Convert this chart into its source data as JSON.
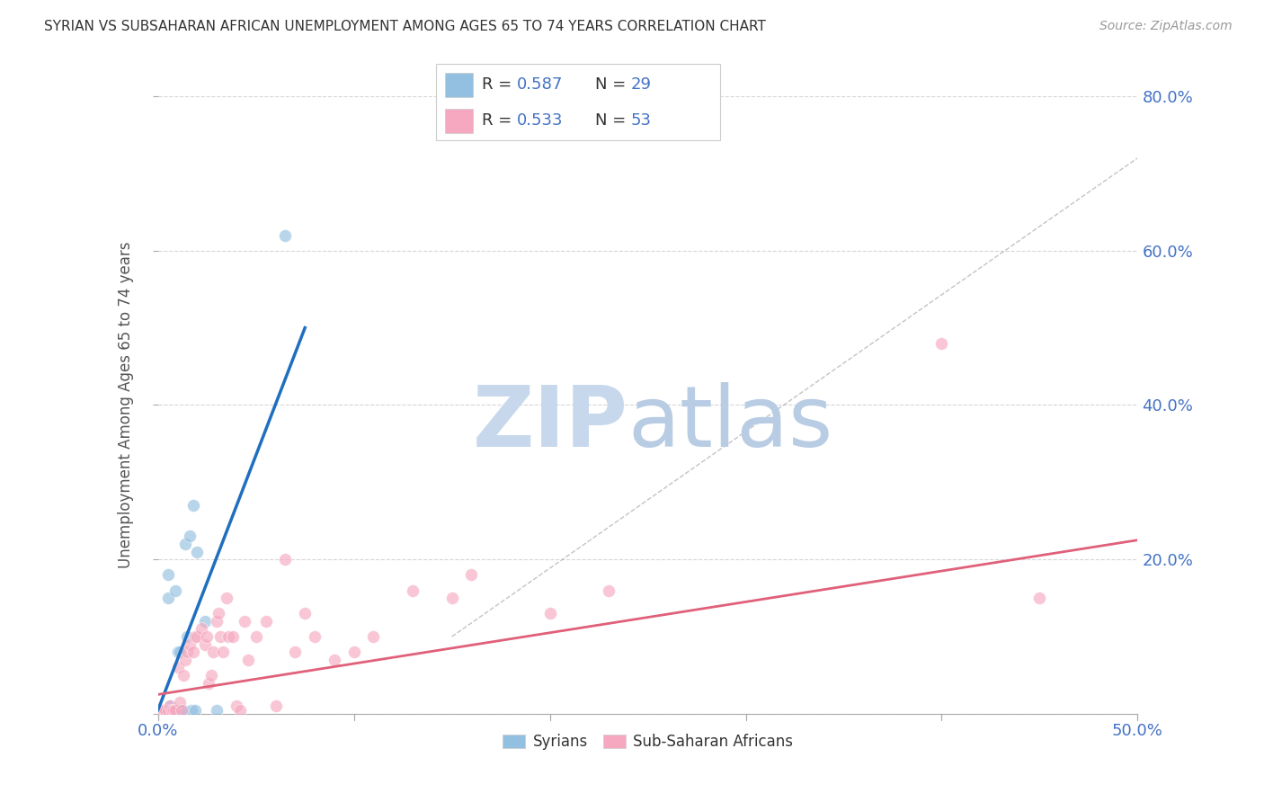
{
  "title": "SYRIAN VS SUBSAHARAN AFRICAN UNEMPLOYMENT AMONG AGES 65 TO 74 YEARS CORRELATION CHART",
  "source": "Source: ZipAtlas.com",
  "ylabel": "Unemployment Among Ages 65 to 74 years",
  "xlim": [
    0.0,
    0.5
  ],
  "ylim": [
    0.0,
    0.8
  ],
  "xticks": [
    0.0,
    0.1,
    0.2,
    0.3,
    0.4,
    0.5
  ],
  "yticks": [
    0.0,
    0.2,
    0.4,
    0.6,
    0.8
  ],
  "ytick_labels": [
    "",
    "20.0%",
    "40.0%",
    "60.0%",
    "80.0%"
  ],
  "xtick_labels_shown": [
    "0.0%",
    "",
    "",
    "",
    "",
    "50.0%"
  ],
  "blue_R": "0.587",
  "blue_N": "29",
  "pink_R": "0.533",
  "pink_N": "53",
  "blue_dot_color": "#93bfe0",
  "pink_dot_color": "#f5a8bf",
  "blue_line_color": "#1f6fbf",
  "pink_line_color": "#e0607a",
  "axis_label_color": "#4472c4",
  "grid_color": "#cccccc",
  "watermark_zip_color": "#c8d8ec",
  "watermark_atlas_color": "#b8cce4",
  "background_color": "#ffffff",
  "legend_border_color": "#cccccc",
  "R_label_color": "#333333",
  "R_value_color": "#4472c4",
  "N_label_color": "#333333",
  "N_value_color": "#4472c4",
  "syrians_x": [
    0.001,
    0.002,
    0.003,
    0.003,
    0.004,
    0.004,
    0.005,
    0.005,
    0.005,
    0.006,
    0.007,
    0.007,
    0.008,
    0.009,
    0.01,
    0.01,
    0.011,
    0.012,
    0.013,
    0.014,
    0.015,
    0.016,
    0.017,
    0.018,
    0.019,
    0.02,
    0.024,
    0.03,
    0.065
  ],
  "syrians_y": [
    0.005,
    0.005,
    0.005,
    0.005,
    0.005,
    0.005,
    0.18,
    0.15,
    0.005,
    0.01,
    0.005,
    0.005,
    0.005,
    0.16,
    0.08,
    0.005,
    0.08,
    0.005,
    0.005,
    0.22,
    0.1,
    0.23,
    0.005,
    0.27,
    0.005,
    0.21,
    0.12,
    0.005,
    0.62
  ],
  "subsaharan_x": [
    0.001,
    0.002,
    0.003,
    0.004,
    0.005,
    0.006,
    0.007,
    0.008,
    0.009,
    0.01,
    0.011,
    0.012,
    0.013,
    0.014,
    0.015,
    0.016,
    0.018,
    0.019,
    0.02,
    0.022,
    0.024,
    0.025,
    0.026,
    0.027,
    0.028,
    0.03,
    0.031,
    0.032,
    0.033,
    0.035,
    0.036,
    0.038,
    0.04,
    0.042,
    0.044,
    0.046,
    0.05,
    0.055,
    0.06,
    0.065,
    0.07,
    0.075,
    0.08,
    0.09,
    0.1,
    0.11,
    0.13,
    0.15,
    0.16,
    0.2,
    0.23,
    0.4,
    0.45
  ],
  "subsaharan_y": [
    0.005,
    0.005,
    0.005,
    0.005,
    0.005,
    0.01,
    0.005,
    0.005,
    0.005,
    0.06,
    0.015,
    0.005,
    0.05,
    0.07,
    0.08,
    0.09,
    0.08,
    0.1,
    0.1,
    0.11,
    0.09,
    0.1,
    0.04,
    0.05,
    0.08,
    0.12,
    0.13,
    0.1,
    0.08,
    0.15,
    0.1,
    0.1,
    0.01,
    0.005,
    0.12,
    0.07,
    0.1,
    0.12,
    0.01,
    0.2,
    0.08,
    0.13,
    0.1,
    0.07,
    0.08,
    0.1,
    0.16,
    0.15,
    0.18,
    0.13,
    0.16,
    0.48,
    0.15
  ],
  "blue_line_x": [
    0.0,
    0.075
  ],
  "blue_line_y": [
    0.005,
    0.5
  ],
  "pink_line_x": [
    0.0,
    0.5
  ],
  "pink_line_y": [
    0.025,
    0.225
  ],
  "diag_line_x": [
    0.15,
    0.5
  ],
  "diag_line_y": [
    0.1,
    0.72
  ],
  "legend_syrians_label": "Syrians",
  "legend_subsaharan_label": "Sub-Saharan Africans"
}
